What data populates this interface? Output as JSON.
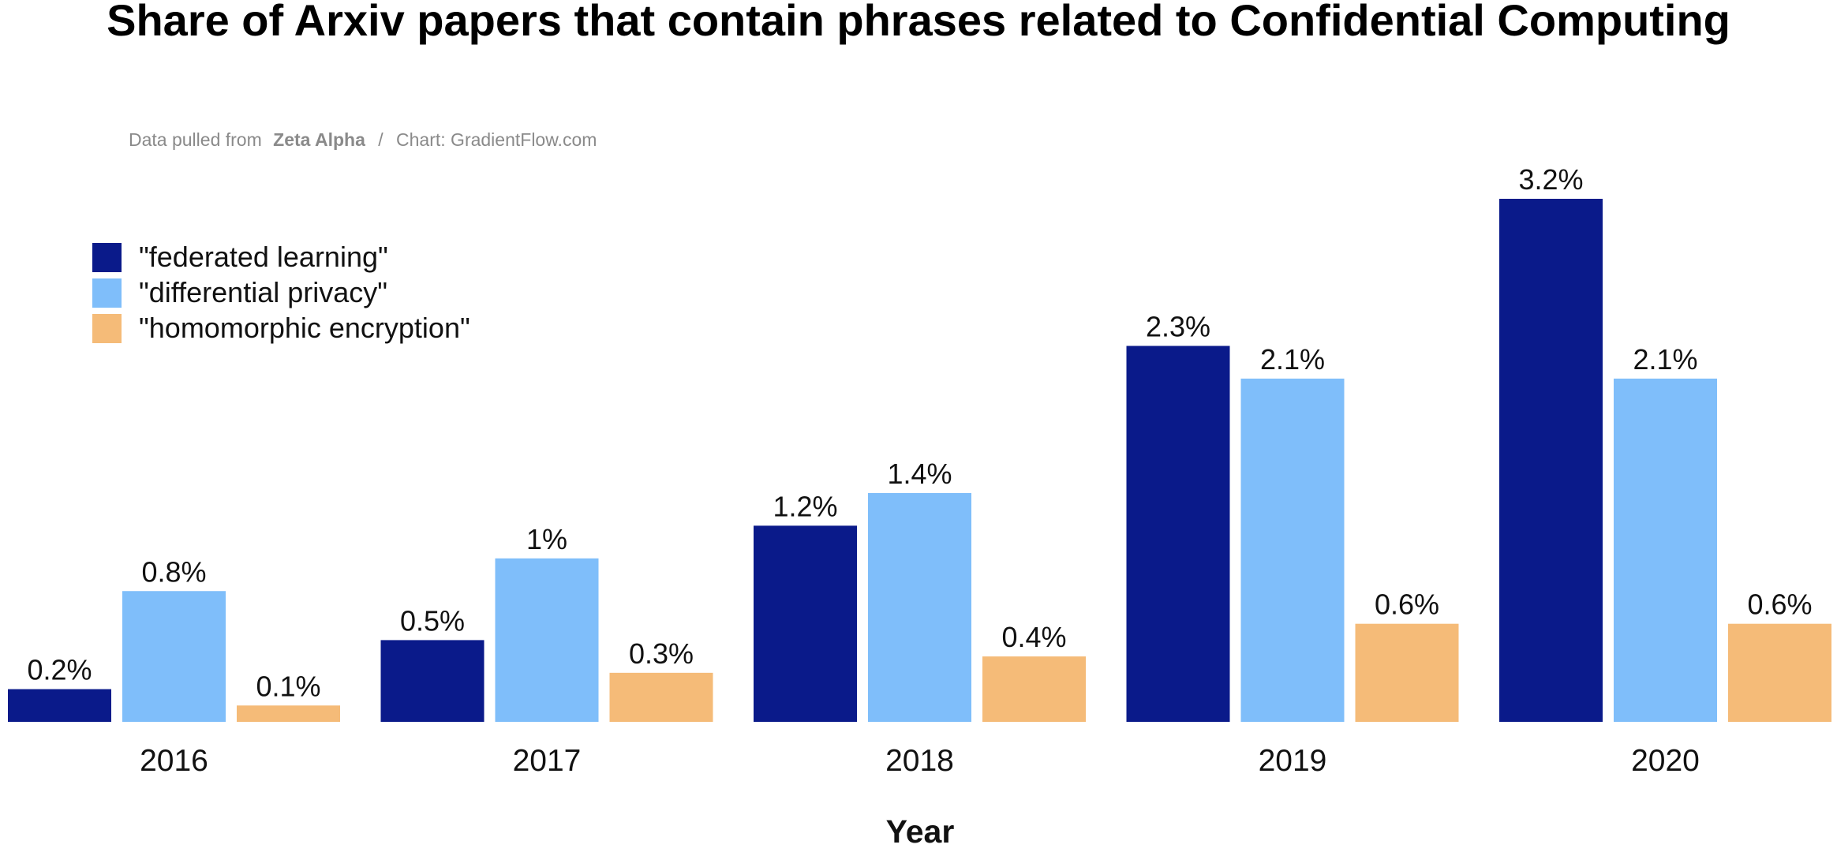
{
  "chart_data": {
    "type": "bar",
    "title": "Share of Arxiv papers that contain phrases related to Confidential Computing",
    "source": {
      "prefix": "Data pulled from",
      "source_name": "Zeta Alpha",
      "separator": "/",
      "credit": "Chart: GradientFlow.com"
    },
    "xlabel": "Year",
    "ylabel": "",
    "ylim": [
      0,
      3.2
    ],
    "grid": false,
    "legend_position": "top-left",
    "categories": [
      "2016",
      "2017",
      "2018",
      "2019",
      "2020"
    ],
    "series": [
      {
        "name": "\"federated learning\"",
        "color": "#0a1a8a",
        "values": [
          0.2,
          0.5,
          1.2,
          2.3,
          3.2
        ],
        "labels": [
          "0.2%",
          "0.5%",
          "1.2%",
          "2.3%",
          "3.2%"
        ]
      },
      {
        "name": "\"differential privacy\"",
        "color": "#7fbefa",
        "values": [
          0.8,
          1.0,
          1.4,
          2.1,
          2.1
        ],
        "labels": [
          "0.8%",
          "1%",
          "1.4%",
          "2.1%",
          "2.1%"
        ]
      },
      {
        "name": "\"homomorphic encryption\"",
        "color": "#f5bb78",
        "values": [
          0.1,
          0.3,
          0.4,
          0.6,
          0.6
        ],
        "labels": [
          "0.1%",
          "0.3%",
          "0.4%",
          "0.6%",
          "0.6%"
        ]
      }
    ]
  }
}
